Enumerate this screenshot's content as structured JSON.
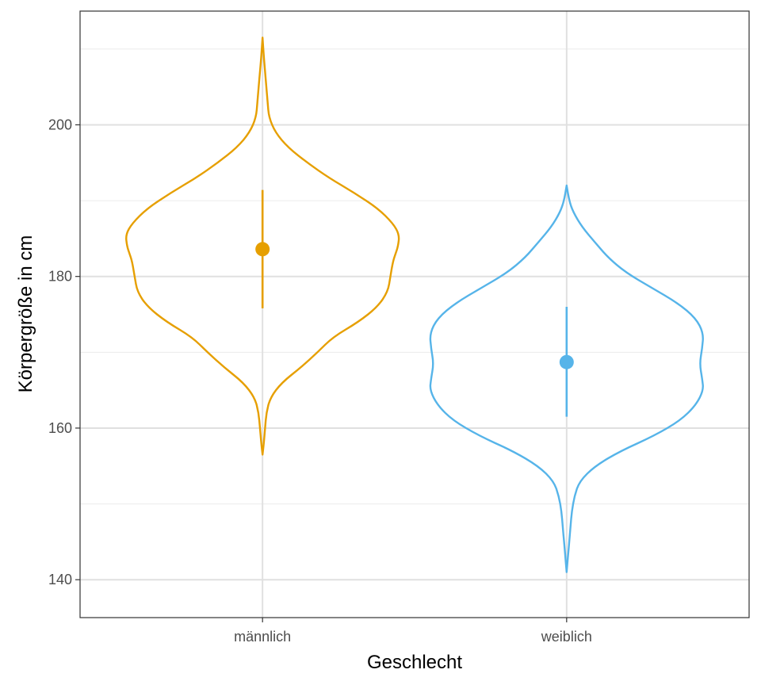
{
  "chart_data": {
    "type": "violin",
    "xlabel": "Geschlecht",
    "ylabel": "Körpergröße in cm",
    "categories": [
      "männlich",
      "weiblich"
    ],
    "ylim": [
      135,
      215
    ],
    "y_ticks": [
      140,
      160,
      180,
      200
    ],
    "y_tick_labels": [
      "140",
      "160",
      "180",
      "200"
    ],
    "grid": true,
    "legend": "none",
    "series": [
      {
        "category": "männlich",
        "color": "#E69F00",
        "mean": 183.6,
        "sd_low": 175.8,
        "sd_high": 191.4,
        "range": [
          156.5,
          211.5
        ],
        "density": [
          [
            156.5,
            0.0
          ],
          [
            158.0,
            0.01
          ],
          [
            160.0,
            0.02
          ],
          [
            162.0,
            0.03
          ],
          [
            164.0,
            0.06
          ],
          [
            166.0,
            0.15
          ],
          [
            168.0,
            0.3
          ],
          [
            170.0,
            0.43
          ],
          [
            172.0,
            0.55
          ],
          [
            174.0,
            0.75
          ],
          [
            176.0,
            0.9
          ],
          [
            178.0,
            0.98
          ],
          [
            180.0,
            1.0
          ],
          [
            182.0,
            1.02
          ],
          [
            183.0,
            1.04
          ],
          [
            184.0,
            1.06
          ],
          [
            185.5,
            1.07
          ],
          [
            187.0,
            1.02
          ],
          [
            189.0,
            0.9
          ],
          [
            191.0,
            0.72
          ],
          [
            193.0,
            0.52
          ],
          [
            195.0,
            0.35
          ],
          [
            197.0,
            0.2
          ],
          [
            199.0,
            0.1
          ],
          [
            201.0,
            0.05
          ],
          [
            203.0,
            0.04
          ],
          [
            205.0,
            0.03
          ],
          [
            207.0,
            0.02
          ],
          [
            209.0,
            0.01
          ],
          [
            211.5,
            0.0
          ]
        ]
      },
      {
        "category": "weiblich",
        "color": "#56B4E9",
        "mean": 168.7,
        "sd_low": 161.5,
        "sd_high": 176.0,
        "range": [
          141.0,
          192.0
        ],
        "density": [
          [
            141.0,
            0.0
          ],
          [
            143.0,
            0.01
          ],
          [
            145.0,
            0.02
          ],
          [
            147.0,
            0.03
          ],
          [
            149.0,
            0.04
          ],
          [
            151.0,
            0.06
          ],
          [
            153.0,
            0.1
          ],
          [
            155.0,
            0.22
          ],
          [
            157.0,
            0.42
          ],
          [
            159.0,
            0.68
          ],
          [
            161.0,
            0.88
          ],
          [
            163.0,
            1.0
          ],
          [
            165.0,
            1.06
          ],
          [
            166.5,
            1.05
          ],
          [
            168.5,
            1.03
          ],
          [
            170.5,
            1.05
          ],
          [
            172.5,
            1.06
          ],
          [
            174.5,
            1.0
          ],
          [
            176.5,
            0.86
          ],
          [
            178.5,
            0.66
          ],
          [
            180.5,
            0.46
          ],
          [
            182.5,
            0.32
          ],
          [
            184.5,
            0.22
          ],
          [
            186.5,
            0.12
          ],
          [
            188.5,
            0.05
          ],
          [
            190.0,
            0.02
          ],
          [
            192.0,
            0.0
          ]
        ]
      }
    ]
  }
}
